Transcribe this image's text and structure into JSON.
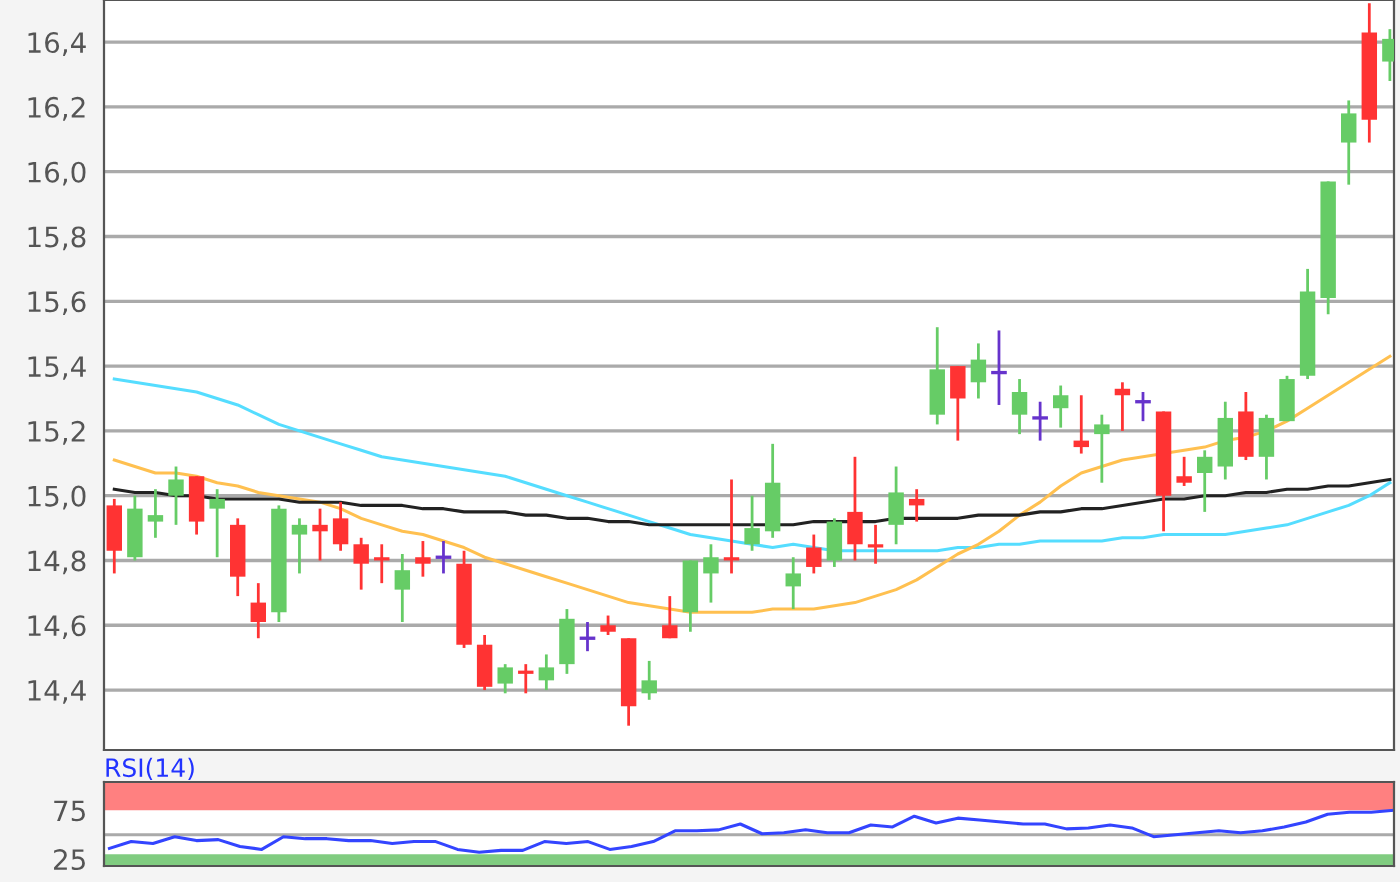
{
  "chart_data": [
    {
      "type": "candlestick",
      "categories": [
        null,
        null,
        null,
        null,
        null,
        null,
        null,
        null,
        null,
        null,
        null,
        null,
        null,
        null,
        null,
        null,
        null,
        null,
        null,
        null,
        null,
        null,
        null,
        null,
        null,
        null,
        null,
        null,
        null,
        null,
        null,
        null,
        null,
        null,
        null,
        null,
        null,
        null,
        null,
        null,
        null,
        null,
        null,
        null,
        null,
        null,
        null,
        null,
        null,
        null,
        null,
        null,
        null,
        null,
        null,
        null,
        null,
        null,
        null,
        null,
        null,
        null,
        null
      ],
      "ohlc": [
        [
          14.97,
          14.99,
          14.76,
          14.83
        ],
        [
          14.81,
          15.0,
          14.8,
          14.96
        ],
        [
          14.92,
          15.02,
          14.87,
          14.94
        ],
        [
          15.0,
          15.09,
          14.91,
          15.05
        ],
        [
          15.06,
          15.06,
          14.88,
          14.92
        ],
        [
          14.96,
          15.02,
          14.81,
          14.99
        ],
        [
          14.91,
          14.93,
          14.69,
          14.75
        ],
        [
          14.67,
          14.73,
          14.56,
          14.61
        ],
        [
          14.64,
          14.97,
          14.61,
          14.96
        ],
        [
          14.88,
          14.93,
          14.76,
          14.91
        ],
        [
          14.91,
          14.96,
          14.8,
          14.89
        ],
        [
          14.93,
          14.98,
          14.83,
          14.85
        ],
        [
          14.85,
          14.87,
          14.71,
          14.79
        ],
        [
          14.81,
          14.85,
          14.73,
          14.8
        ],
        [
          14.71,
          14.82,
          14.61,
          14.77
        ],
        [
          14.81,
          14.86,
          14.75,
          14.79
        ],
        [
          14.81,
          14.86,
          14.76,
          14.81
        ],
        [
          14.79,
          14.83,
          14.53,
          14.54
        ],
        [
          14.54,
          14.57,
          14.4,
          14.41
        ],
        [
          14.42,
          14.48,
          14.39,
          14.47
        ],
        [
          14.46,
          14.48,
          14.39,
          14.45
        ],
        [
          14.43,
          14.51,
          14.4,
          14.47
        ],
        [
          14.48,
          14.65,
          14.45,
          14.62
        ],
        [
          14.56,
          14.61,
          14.52,
          14.56
        ],
        [
          14.6,
          14.63,
          14.57,
          14.58
        ],
        [
          14.56,
          14.56,
          14.29,
          14.35
        ],
        [
          14.39,
          14.49,
          14.37,
          14.43
        ],
        [
          14.6,
          14.69,
          14.56,
          14.56
        ],
        [
          14.64,
          14.8,
          14.58,
          14.8
        ],
        [
          14.76,
          14.85,
          14.67,
          14.81
        ],
        [
          14.81,
          15.05,
          14.76,
          14.8
        ],
        [
          14.85,
          15.0,
          14.83,
          14.9
        ],
        [
          14.89,
          15.16,
          14.87,
          15.04
        ],
        [
          14.72,
          14.81,
          14.65,
          14.76
        ],
        [
          14.84,
          14.88,
          14.76,
          14.78
        ],
        [
          14.8,
          14.93,
          14.78,
          14.92
        ],
        [
          14.95,
          15.12,
          14.8,
          14.85
        ],
        [
          14.85,
          14.91,
          14.79,
          14.84
        ],
        [
          14.91,
          15.09,
          14.85,
          15.01
        ],
        [
          14.99,
          15.02,
          14.92,
          14.97
        ],
        [
          15.25,
          15.52,
          15.22,
          15.39
        ],
        [
          15.4,
          15.4,
          15.17,
          15.3
        ],
        [
          15.35,
          15.47,
          15.3,
          15.42
        ],
        [
          15.38,
          15.51,
          15.28,
          15.38
        ],
        [
          15.25,
          15.36,
          15.19,
          15.32
        ],
        [
          15.24,
          15.29,
          15.17,
          15.24
        ],
        [
          15.27,
          15.34,
          15.21,
          15.31
        ],
        [
          15.17,
          15.31,
          15.13,
          15.15
        ],
        [
          15.19,
          15.25,
          15.04,
          15.22
        ],
        [
          15.33,
          15.35,
          15.2,
          15.31
        ],
        [
          15.29,
          15.32,
          15.23,
          15.29
        ],
        [
          15.26,
          15.26,
          14.89,
          15.0
        ],
        [
          15.06,
          15.12,
          15.03,
          15.04
        ],
        [
          15.07,
          15.14,
          14.95,
          15.12
        ],
        [
          15.09,
          15.29,
          15.05,
          15.24
        ],
        [
          15.26,
          15.32,
          15.11,
          15.12
        ],
        [
          15.12,
          15.25,
          15.05,
          15.24
        ],
        [
          15.23,
          15.37,
          15.23,
          15.36
        ],
        [
          15.37,
          15.7,
          15.36,
          15.63
        ],
        [
          15.61,
          15.97,
          15.56,
          15.97
        ],
        [
          16.09,
          16.22,
          15.96,
          16.18
        ],
        [
          16.43,
          16.52,
          16.09,
          16.16
        ],
        [
          16.34,
          16.44,
          16.28,
          16.41
        ]
      ],
      "colors": [
        "#ff3333",
        "#66cc66",
        "#66cc66",
        "#66cc66",
        "#ff3333",
        "#66cc66",
        "#ff3333",
        "#ff3333",
        "#66cc66",
        "#66cc66",
        "#ff3333",
        "#ff3333",
        "#ff3333",
        "#ff3333",
        "#66cc66",
        "#ff3333",
        "#6633cc",
        "#ff3333",
        "#ff3333",
        "#66cc66",
        "#ff3333",
        "#66cc66",
        "#66cc66",
        "#6633cc",
        "#ff3333",
        "#ff3333",
        "#66cc66",
        "#ff3333",
        "#66cc66",
        "#66cc66",
        "#ff3333",
        "#66cc66",
        "#66cc66",
        "#66cc66",
        "#ff3333",
        "#66cc66",
        "#ff3333",
        "#ff3333",
        "#66cc66",
        "#ff3333",
        "#66cc66",
        "#ff3333",
        "#66cc66",
        "#6633cc",
        "#66cc66",
        "#6633cc",
        "#66cc66",
        "#ff3333",
        "#66cc66",
        "#ff3333",
        "#6633cc",
        "#ff3333",
        "#ff3333",
        "#66cc66",
        "#66cc66",
        "#ff3333",
        "#66cc66",
        "#66cc66",
        "#66cc66",
        "#66cc66",
        "#66cc66",
        "#ff3333",
        "#66cc66"
      ],
      "series": [
        {
          "type": "line",
          "color": "#55ddff",
          "values": [
            15.36,
            15.35,
            15.34,
            15.33,
            15.32,
            15.3,
            15.28,
            15.25,
            15.22,
            15.2,
            15.18,
            15.16,
            15.14,
            15.12,
            15.11,
            15.1,
            15.09,
            15.08,
            15.07,
            15.06,
            15.04,
            15.02,
            15.0,
            14.98,
            14.96,
            14.94,
            14.92,
            14.9,
            14.88,
            14.87,
            14.86,
            14.85,
            14.84,
            14.85,
            14.84,
            14.83,
            14.83,
            14.83,
            14.83,
            14.83,
            14.83,
            14.84,
            14.84,
            14.85,
            14.85,
            14.86,
            14.86,
            14.86,
            14.86,
            14.87,
            14.87,
            14.88,
            14.88,
            14.88,
            14.88,
            14.89,
            14.9,
            14.91,
            14.93,
            14.95,
            14.97,
            15.0,
            15.04
          ]
        },
        {
          "type": "line",
          "color": "#ffc050",
          "values": [
            15.11,
            15.09,
            15.07,
            15.07,
            15.06,
            15.04,
            15.03,
            15.01,
            15.0,
            14.99,
            14.98,
            14.96,
            14.93,
            14.91,
            14.89,
            14.88,
            14.86,
            14.84,
            14.81,
            14.79,
            14.77,
            14.75,
            14.73,
            14.71,
            14.69,
            14.67,
            14.66,
            14.65,
            14.64,
            14.64,
            14.64,
            14.64,
            14.65,
            14.65,
            14.65,
            14.66,
            14.67,
            14.69,
            14.71,
            14.74,
            14.78,
            14.82,
            14.85,
            14.89,
            14.94,
            14.98,
            15.03,
            15.07,
            15.09,
            15.11,
            15.12,
            15.13,
            15.14,
            15.15,
            15.17,
            15.18,
            15.2,
            15.23,
            15.27,
            15.31,
            15.35,
            15.39,
            15.43
          ]
        },
        {
          "type": "line",
          "color": "#222222",
          "values": [
            15.02,
            15.01,
            15.01,
            15.0,
            15.0,
            14.99,
            14.99,
            14.99,
            14.99,
            14.98,
            14.98,
            14.98,
            14.97,
            14.97,
            14.97,
            14.96,
            14.96,
            14.95,
            14.95,
            14.95,
            14.94,
            14.94,
            14.93,
            14.93,
            14.92,
            14.92,
            14.91,
            14.91,
            14.91,
            14.91,
            14.91,
            14.91,
            14.91,
            14.91,
            14.92,
            14.92,
            14.92,
            14.92,
            14.93,
            14.93,
            14.93,
            14.93,
            14.94,
            14.94,
            14.94,
            14.95,
            14.95,
            14.96,
            14.96,
            14.97,
            14.98,
            14.99,
            14.99,
            15.0,
            15.0,
            15.01,
            15.01,
            15.02,
            15.02,
            15.03,
            15.03,
            15.04,
            15.05
          ]
        }
      ],
      "ylim": [
        14.215,
        16.53
      ],
      "yticks": [
        {
          "value": 14.4,
          "label": "14,4"
        },
        {
          "value": 14.6,
          "label": "14,6"
        },
        {
          "value": 14.8,
          "label": "14,8"
        },
        {
          "value": 15.0,
          "label": "15,0"
        },
        {
          "value": 15.2,
          "label": "15,2"
        },
        {
          "value": 15.4,
          "label": "15,4"
        },
        {
          "value": 15.6,
          "label": "15,6"
        },
        {
          "value": 15.8,
          "label": "15,8"
        },
        {
          "value": 16.0,
          "label": "16,0"
        },
        {
          "value": 16.2,
          "label": "16,2"
        },
        {
          "value": 16.4,
          "label": "16,4"
        }
      ],
      "grid": "y"
    },
    {
      "type": "line",
      "title": "RSI(14)",
      "categories": [
        null,
        null,
        null,
        null,
        null,
        null,
        null,
        null,
        null,
        null,
        null,
        null,
        null,
        null,
        null,
        null,
        null,
        null,
        null,
        null,
        null,
        null,
        null,
        null,
        null,
        null,
        null,
        null,
        null,
        null,
        null,
        null,
        null,
        null,
        null,
        null,
        null,
        null,
        null,
        null,
        null,
        null,
        null,
        null,
        null,
        null,
        null,
        null,
        null,
        null,
        null,
        null,
        null,
        null,
        null,
        null,
        null,
        null,
        null,
        null
      ],
      "series": [
        {
          "color": "#3344ff",
          "values": [
            36,
            43,
            41,
            48,
            44,
            45,
            38,
            35,
            48,
            46,
            46,
            44,
            44,
            41,
            43,
            43,
            35,
            32,
            34,
            34,
            43,
            41,
            43,
            35,
            38,
            43,
            54,
            54,
            55,
            61,
            51,
            52,
            55,
            52,
            52,
            60,
            58,
            69,
            62,
            67,
            65,
            63,
            61,
            61,
            56,
            57,
            60,
            57,
            48,
            50,
            52,
            54,
            52,
            54,
            58,
            63,
            71,
            73,
            73,
            75
          ]
        }
      ],
      "ylim": [
        18,
        104
      ],
      "yticks": [
        25,
        75
      ],
      "bands": [
        {
          "axis": "y",
          "from": 75,
          "to": 104,
          "color": "#ff8080"
        },
        {
          "axis": "y",
          "from": 18,
          "to": 30,
          "color": "#80cc80"
        }
      ],
      "ref_lines": [
        {
          "axis": "y",
          "value": 50,
          "color": "#aaaaaa"
        }
      ]
    }
  ]
}
